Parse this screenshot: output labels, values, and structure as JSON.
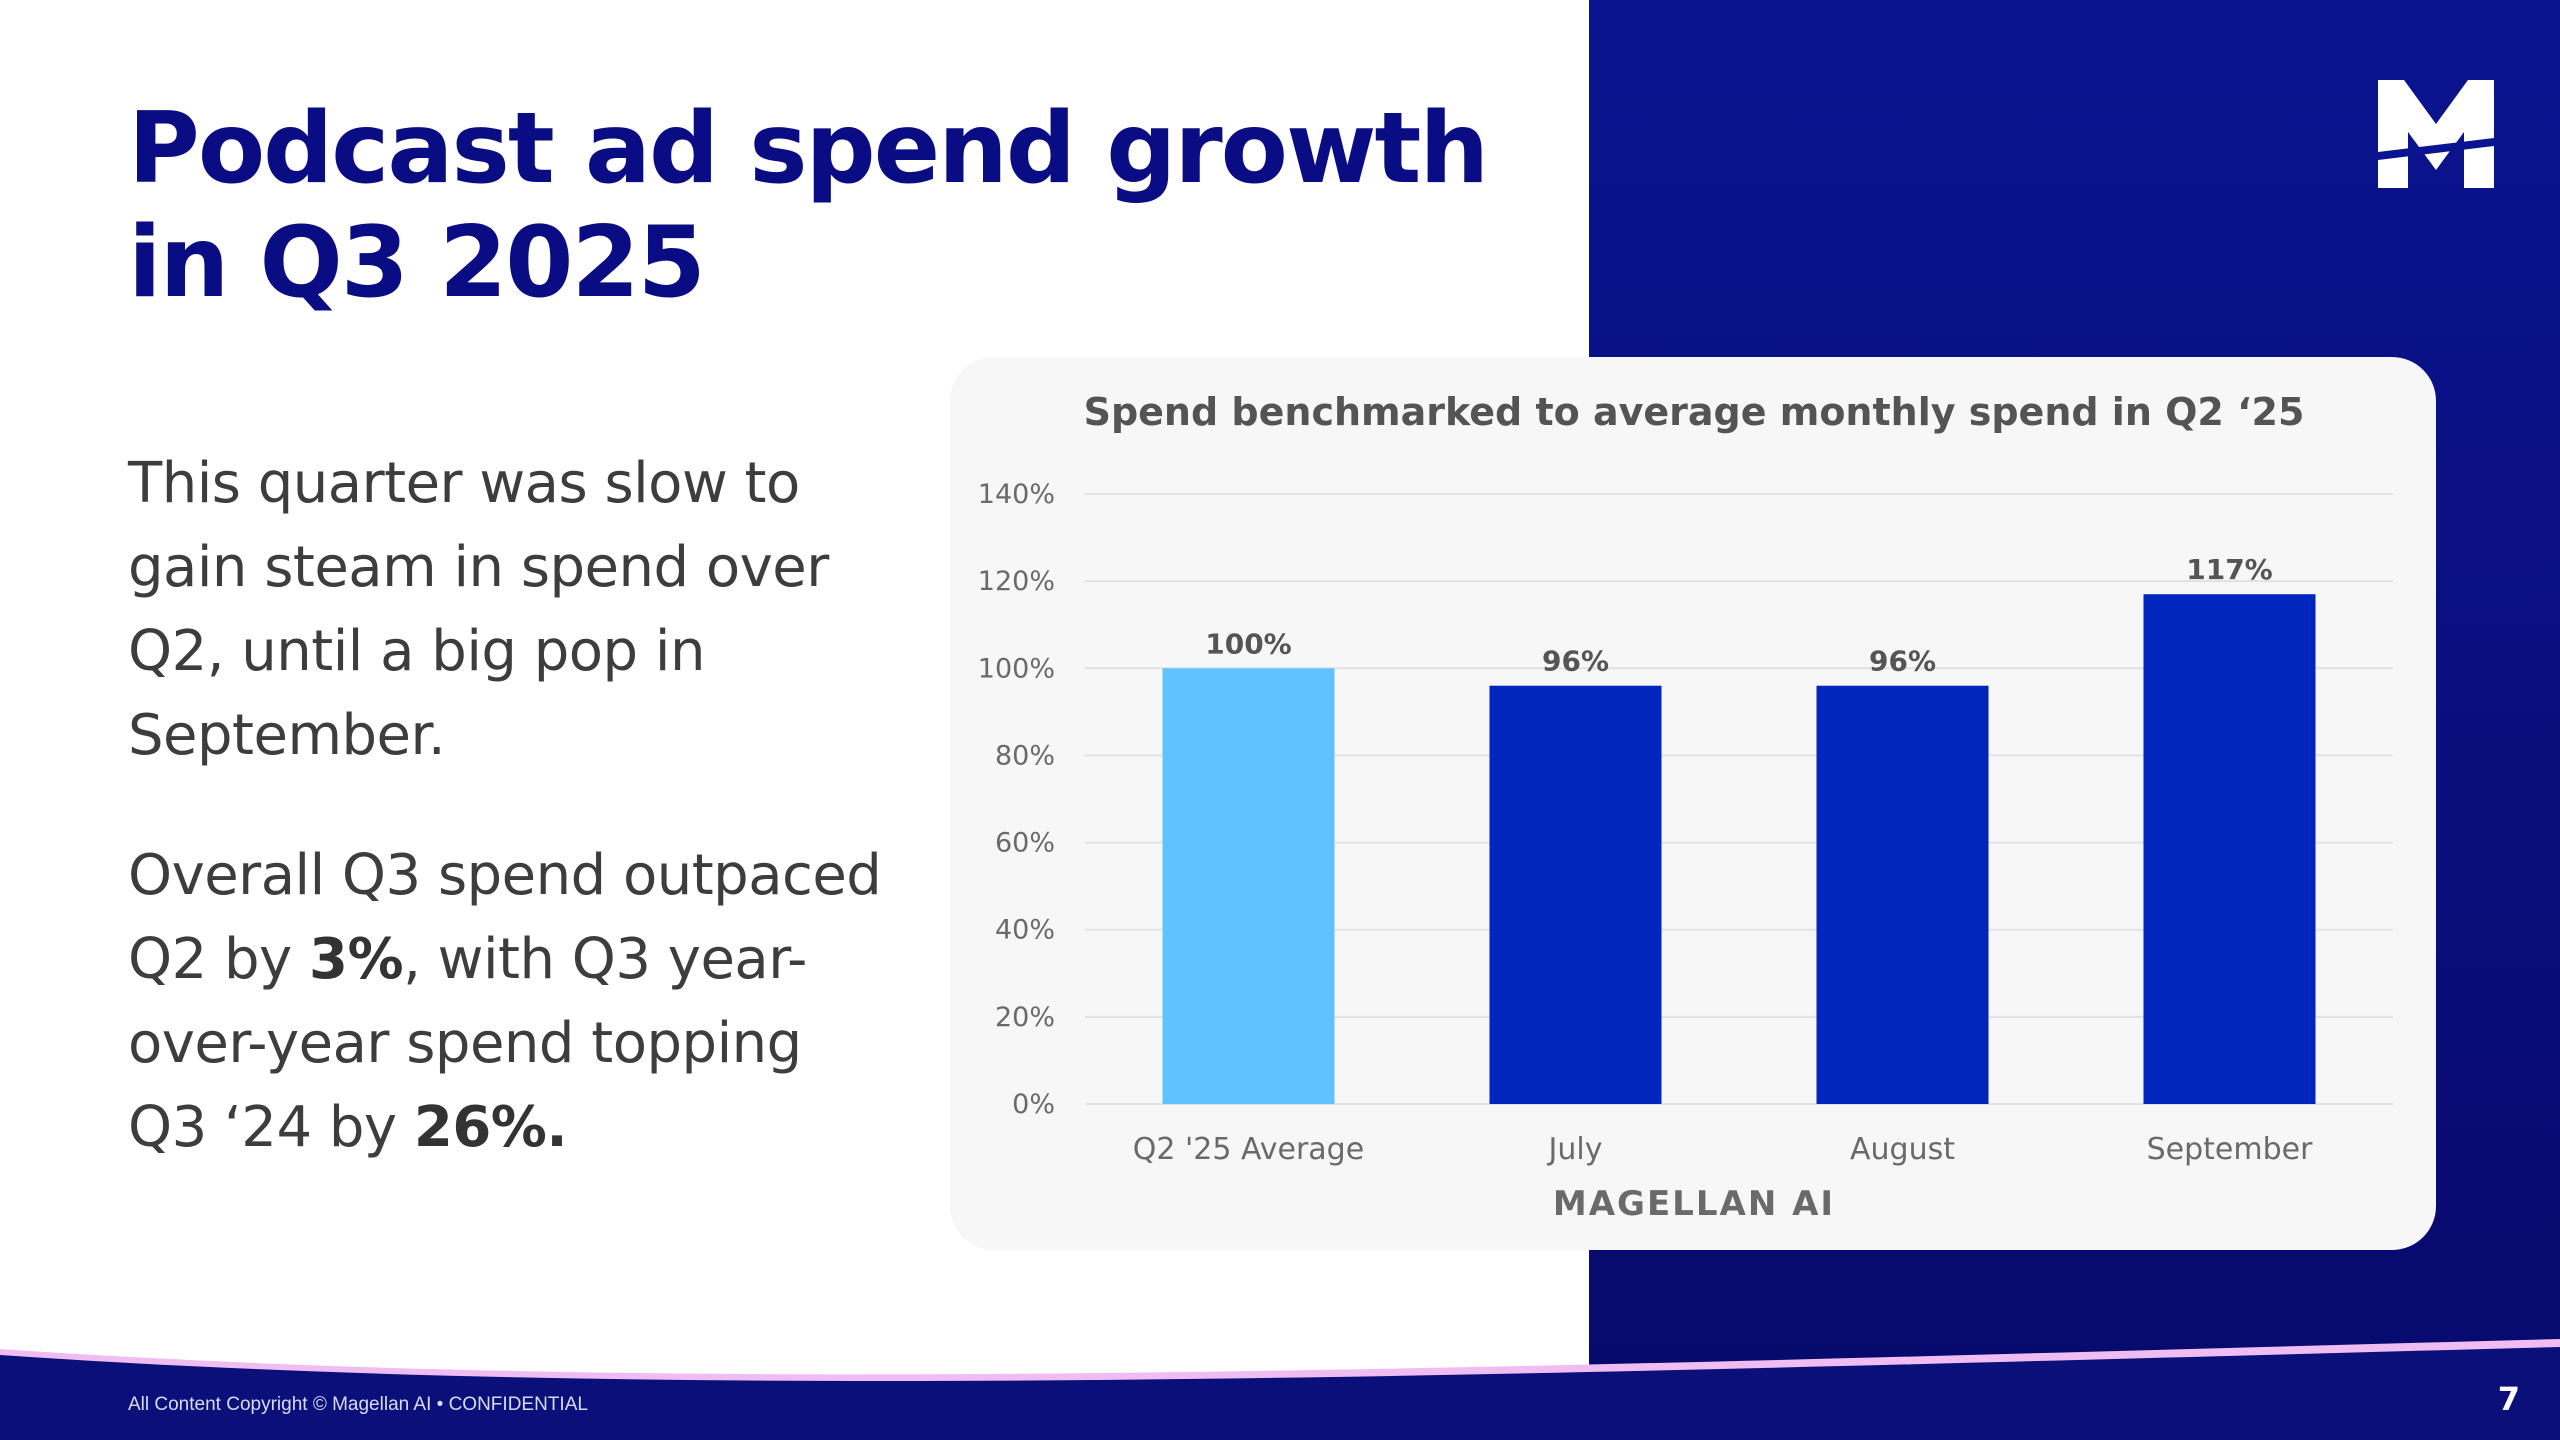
{
  "slide": {
    "title": "Podcast ad spend growth in Q3 2025",
    "paragraph1": "This quarter was slow to gain steam in spend over Q2, until a big pop in September.",
    "paragraph2": {
      "part1": "Overall Q3 spend outpaced Q2 by ",
      "bold1": "3%",
      "part2": ", with Q3 year-over-year spend topping Q3 ‘24 by ",
      "bold2": "26%."
    },
    "copyright": "All Content Copyright © Magellan AI • CONFIDENTIAL",
    "page_number": "7"
  },
  "colors": {
    "navy": "#0a0c83",
    "panel": "#0b1490",
    "bar_light": "#62c1ff",
    "bar_dark": "#0026be",
    "footer_accent": "#f0bdf2"
  },
  "chart_data": {
    "type": "bar",
    "title": "Spend benchmarked to average monthly spend in Q2 ‘25",
    "categories": [
      "Q2 '25 Average",
      "July",
      "August",
      "September"
    ],
    "values": [
      100,
      96,
      96,
      117
    ],
    "data_labels": [
      "100%",
      "96%",
      "96%",
      "117%"
    ],
    "bar_colors": [
      "#62c1ff",
      "#0026be",
      "#0026be",
      "#0026be"
    ],
    "ylim": [
      0,
      140
    ],
    "yticks": [
      0,
      20,
      40,
      60,
      80,
      100,
      120,
      140
    ],
    "ytick_labels": [
      "0%",
      "20%",
      "40%",
      "60%",
      "80%",
      "100%",
      "120%",
      "140%"
    ],
    "grid": true,
    "watermark": "MAGELLAN AI"
  }
}
